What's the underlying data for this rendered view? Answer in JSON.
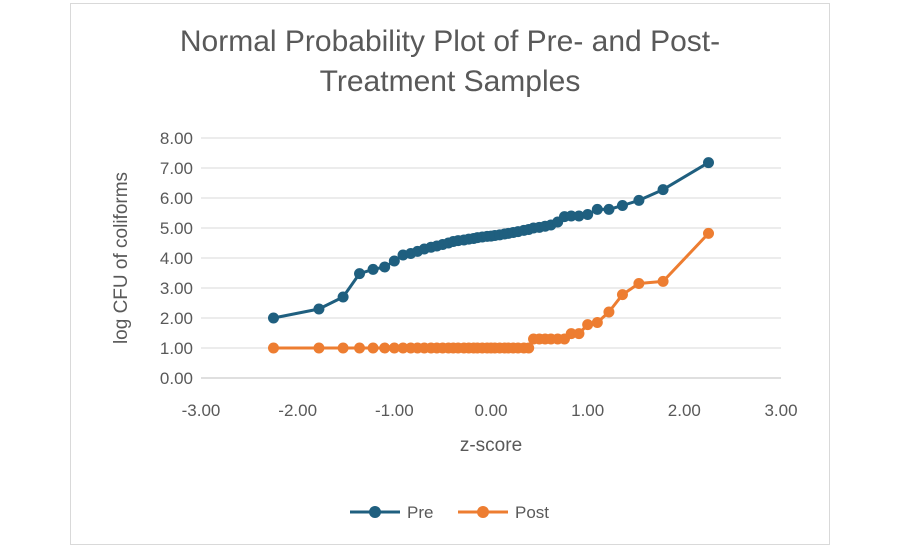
{
  "chart_data": {
    "type": "scatter",
    "title_lines": [
      "Normal Probability Plot of Pre- and Post-",
      "Treatment Samples"
    ],
    "xlabel": "z-score",
    "ylabel": "log CFU of coliforms",
    "xlim": [
      -3,
      3
    ],
    "ylim": [
      0,
      8
    ],
    "x_ticks": [
      "-3.00",
      "-2.00",
      "-1.00",
      "0.00",
      "1.00",
      "2.00",
      "3.00"
    ],
    "y_ticks": [
      "0.00",
      "1.00",
      "2.00",
      "3.00",
      "4.00",
      "5.00",
      "6.00",
      "7.00",
      "8.00"
    ],
    "grid": "horizontal",
    "legend_position": "bottom",
    "series": [
      {
        "name": "Pre",
        "color": "#1f5f7f",
        "x": [
          -2.25,
          -1.78,
          -1.53,
          -1.36,
          -1.22,
          -1.1,
          -1.0,
          -0.91,
          -0.83,
          -0.76,
          -0.69,
          -0.62,
          -0.56,
          -0.5,
          -0.44,
          -0.39,
          -0.34,
          -0.28,
          -0.23,
          -0.18,
          -0.14,
          -0.09,
          -0.04,
          0.0,
          0.04,
          0.09,
          0.14,
          0.18,
          0.23,
          0.28,
          0.34,
          0.39,
          0.44,
          0.5,
          0.56,
          0.62,
          0.69,
          0.76,
          0.83,
          0.91,
          1.0,
          1.1,
          1.22,
          1.36,
          1.53,
          1.78,
          2.25
        ],
        "y": [
          2.0,
          2.3,
          2.7,
          3.48,
          3.62,
          3.7,
          3.9,
          4.1,
          4.15,
          4.22,
          4.3,
          4.36,
          4.4,
          4.45,
          4.5,
          4.55,
          4.58,
          4.6,
          4.63,
          4.65,
          4.68,
          4.7,
          4.72,
          4.73,
          4.75,
          4.77,
          4.8,
          4.82,
          4.85,
          4.88,
          4.92,
          4.95,
          5.0,
          5.02,
          5.06,
          5.1,
          5.2,
          5.38,
          5.4,
          5.4,
          5.45,
          5.62,
          5.62,
          5.75,
          5.92,
          6.28,
          7.18
        ]
      },
      {
        "name": "Post",
        "color": "#ed7d31",
        "x": [
          -2.25,
          -1.78,
          -1.53,
          -1.36,
          -1.22,
          -1.1,
          -1.0,
          -0.91,
          -0.83,
          -0.76,
          -0.69,
          -0.62,
          -0.56,
          -0.5,
          -0.44,
          -0.39,
          -0.34,
          -0.28,
          -0.23,
          -0.18,
          -0.14,
          -0.09,
          -0.04,
          0.0,
          0.04,
          0.09,
          0.14,
          0.18,
          0.23,
          0.28,
          0.34,
          0.39,
          0.44,
          0.5,
          0.56,
          0.62,
          0.69,
          0.76,
          0.83,
          0.91,
          1.0,
          1.1,
          1.22,
          1.36,
          1.53,
          1.78,
          2.25
        ],
        "y": [
          1.0,
          1.0,
          1.0,
          1.0,
          1.0,
          1.0,
          1.0,
          1.0,
          1.0,
          1.0,
          1.0,
          1.0,
          1.0,
          1.0,
          1.0,
          1.0,
          1.0,
          1.0,
          1.0,
          1.0,
          1.0,
          1.0,
          1.0,
          1.0,
          1.0,
          1.0,
          1.0,
          1.0,
          1.0,
          1.0,
          1.0,
          1.0,
          1.3,
          1.3,
          1.3,
          1.3,
          1.3,
          1.3,
          1.48,
          1.48,
          1.78,
          1.85,
          2.2,
          2.78,
          3.15,
          3.22,
          4.82
        ]
      }
    ]
  }
}
